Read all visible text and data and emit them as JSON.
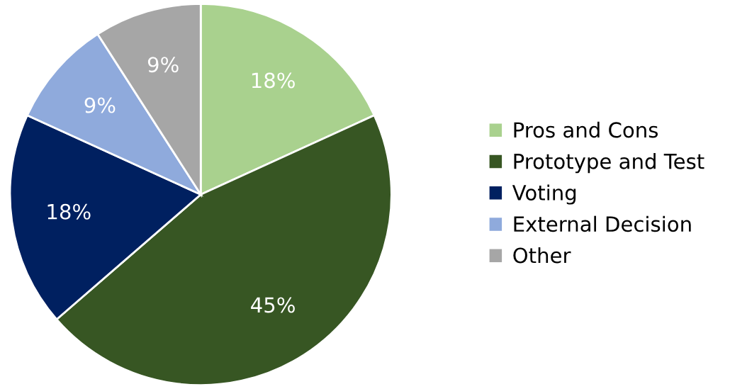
{
  "chart_data": {
    "type": "pie",
    "categories": [
      "Pros and Cons",
      "Prototype and Test",
      "Voting",
      "External Decision",
      "Other"
    ],
    "values": [
      18,
      45,
      18,
      9,
      9
    ],
    "colors": [
      "#a9d18e",
      "#375623",
      "#002060",
      "#8faadc",
      "#a6a6a6"
    ],
    "value_labels": [
      "18%",
      "45%",
      "18%",
      "9%",
      "9%"
    ],
    "legend": "right"
  }
}
